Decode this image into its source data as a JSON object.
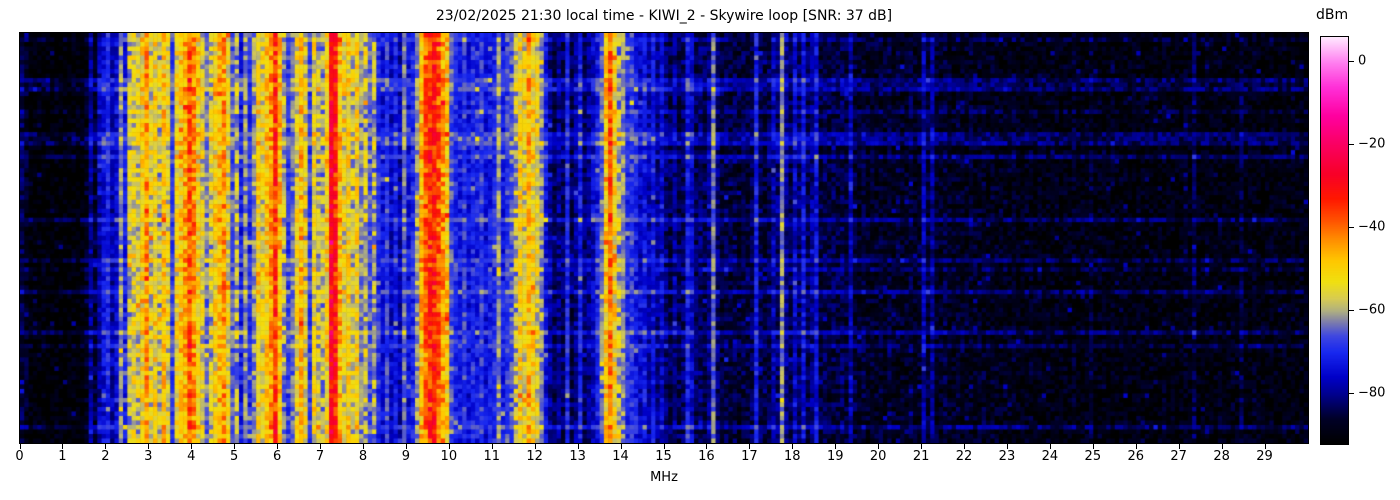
{
  "figure": {
    "title": "23/02/2025 21:30 local time - KIWI_2 - Skywire loop [SNR: 37 dB]",
    "xlabel": "MHz",
    "colorbar_label": "dBm"
  },
  "chart_data": {
    "type": "heatmap",
    "subtype": "rf-spectrogram-waterfall",
    "title": "23/02/2025 21:30 local time - KIWI_2 - Skywire loop [SNR: 37 dB]",
    "xlabel": "MHz",
    "x_range_mhz": [
      0,
      30
    ],
    "x_tick_labels": [
      "0",
      "1",
      "2",
      "3",
      "4",
      "5",
      "6",
      "7",
      "8",
      "9",
      "10",
      "11",
      "12",
      "13",
      "14",
      "15",
      "16",
      "17",
      "18",
      "19",
      "20",
      "21",
      "22",
      "23",
      "24",
      "25",
      "26",
      "27",
      "28",
      "29"
    ],
    "colorbar": {
      "label": "dBm",
      "tick_labels": [
        "0",
        "−20",
        "−40",
        "−60",
        "−80"
      ],
      "tick_values": [
        0,
        -20,
        -40,
        -60,
        -80
      ],
      "vmin": -92,
      "vmax": 6
    },
    "colormap_stops": [
      [
        -92,
        "#000000"
      ],
      [
        -86,
        "#000028"
      ],
      [
        -80,
        "#000090"
      ],
      [
        -76,
        "#0000c8"
      ],
      [
        -70,
        "#1828f0"
      ],
      [
        -66,
        "#4048e0"
      ],
      [
        -63,
        "#7878b0"
      ],
      [
        -60,
        "#b0b080"
      ],
      [
        -57,
        "#d8cc50"
      ],
      [
        -53,
        "#f0e010"
      ],
      [
        -48,
        "#ffc800"
      ],
      [
        -43,
        "#ff9000"
      ],
      [
        -38,
        "#ff5000"
      ],
      [
        -33,
        "#ff1800"
      ],
      [
        -27,
        "#f80028"
      ],
      [
        -20,
        "#fa0060"
      ],
      [
        -13,
        "#ff00a0"
      ],
      [
        -6,
        "#ff30d8"
      ],
      [
        0,
        "#ff80f0"
      ],
      [
        6,
        "#ffe8ff"
      ]
    ],
    "freq_step_mhz": 0.1,
    "profile_dbm": [
      -85,
      -88,
      -91,
      -92,
      -92,
      -91,
      -92,
      -92,
      -91,
      -92,
      -92,
      -92,
      -91,
      -92,
      -91,
      -88,
      -80,
      -86,
      -78,
      -74,
      -70,
      -78,
      -75,
      -62,
      -72,
      -58,
      -55,
      -57,
      -52,
      -44,
      -56,
      -52,
      -58,
      -50,
      -55,
      -68,
      -54,
      -50,
      -46,
      -38,
      -44,
      -52,
      -56,
      -64,
      -58,
      -53,
      -48,
      -44,
      -54,
      -66,
      -60,
      -72,
      -62,
      -70,
      -62,
      -52,
      -55,
      -50,
      -45,
      -36,
      -48,
      -60,
      -68,
      -64,
      -55,
      -48,
      -56,
      -68,
      -54,
      -58,
      -60,
      -52,
      -28,
      -33,
      -48,
      -55,
      -52,
      -57,
      -53,
      -62,
      -58,
      -66,
      -60,
      -70,
      -74,
      -68,
      -76,
      -72,
      -78,
      -64,
      -74,
      -70,
      -62,
      -48,
      -40,
      -34,
      -33,
      -38,
      -44,
      -50,
      -66,
      -70,
      -72,
      -68,
      -74,
      -70,
      -72,
      -68,
      -74,
      -72,
      -70,
      -62,
      -72,
      -68,
      -66,
      -58,
      -52,
      -55,
      -48,
      -52,
      -55,
      -62,
      -74,
      -80,
      -84,
      -80,
      -83,
      -70,
      -84,
      -80,
      -72,
      -82,
      -80,
      -76,
      -72,
      -64,
      -50,
      -40,
      -52,
      -60,
      -62,
      -70,
      -68,
      -72,
      -76,
      -72,
      -78,
      -74,
      -80,
      -76,
      -82,
      -84,
      -80,
      -84,
      -82,
      -72,
      -76,
      -84,
      -82,
      -85,
      -80,
      -64,
      -82,
      -86,
      -84,
      -86,
      -85,
      -87,
      -85,
      -86,
      -84,
      -72,
      -84,
      -86,
      -84,
      -78,
      -82,
      -62,
      -80,
      -84,
      -76,
      -82,
      -74,
      -84,
      -80,
      -74,
      -86,
      -84,
      -86,
      -85,
      -86,
      -84,
      -86,
      -78,
      -86,
      -88,
      -86,
      -88,
      -87,
      -88,
      -87,
      -88,
      -86,
      -88,
      -87,
      -88,
      -88,
      -86,
      -88,
      -87,
      -78,
      -86,
      -80,
      -87,
      -88,
      -86,
      -88,
      -88,
      -87,
      -88,
      -88,
      -87,
      -88,
      -88,
      -87,
      -89,
      -88,
      -88,
      -89,
      -88,
      -89,
      -88,
      -89,
      -90,
      -89,
      -88,
      -90,
      -89,
      -90,
      -89,
      -90,
      -89,
      -90,
      -89,
      -90,
      -88,
      -90,
      -90,
      -89,
      -86,
      -90,
      -89,
      -90,
      -90,
      -89,
      -90,
      -90,
      -89,
      -90,
      -90,
      -89,
      -90,
      -90,
      -89,
      -90,
      -90,
      -89,
      -90,
      -90,
      -90,
      -90,
      -89,
      -90,
      -84,
      -90,
      -90,
      -89,
      -90,
      -90,
      -89,
      -90,
      -90,
      -89,
      -90,
      -85,
      -90,
      -90,
      -89,
      -90,
      -90,
      -90,
      -89,
      -90,
      -90,
      -89,
      -90,
      -89,
      -90,
      -90,
      -90
    ],
    "time_rows": 91,
    "noise_model": {
      "quiet_amp_db": 5,
      "signal_amp_db": 8,
      "spike_db": 10,
      "spike_prob": 0.03,
      "streak_prob": 0.16,
      "streak_rows": [
        22,
        57,
        87
      ],
      "streak_boost_db": 7
    },
    "seed": 20250223
  }
}
